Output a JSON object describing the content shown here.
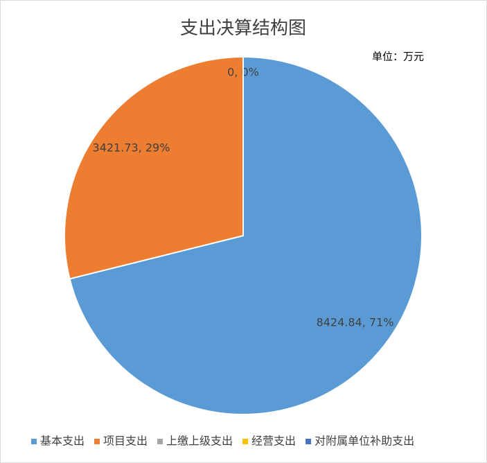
{
  "chart_data": {
    "type": "pie",
    "title": "支出决算结构图",
    "subtitle": "单位：万元",
    "categories": [
      "基本支出",
      "项目支出",
      "上缴上级支出",
      "经营支出",
      "对附属单位补助支出"
    ],
    "values": [
      8424.84,
      3421.73,
      0,
      0,
      0
    ],
    "value_labels": [
      "8424.84, 71%",
      "3421.73, 29%",
      "0, 0%",
      null,
      null
    ],
    "colors": [
      "#5b9bd5",
      "#ed7d31",
      "#a5a5a5",
      "#ffc000",
      "#4472c4"
    ],
    "legend": "bottom"
  }
}
